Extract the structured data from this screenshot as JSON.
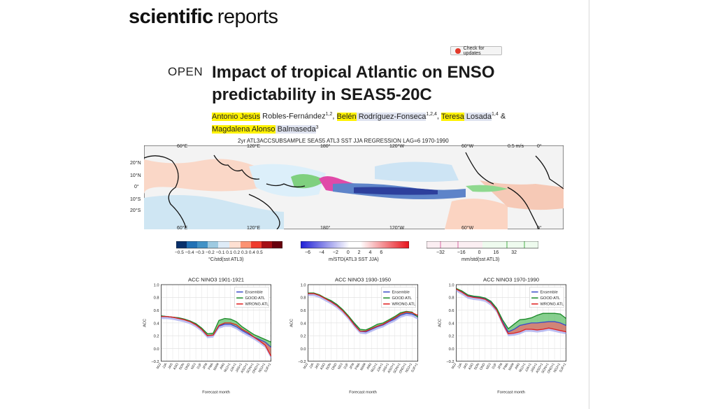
{
  "journal": {
    "bold": "scientific",
    "light": "reports"
  },
  "check_updates": "Check for updates",
  "open_label": "OPEN",
  "title": "Impact of tropical Atlantic on ENSO predictability in SEAS5-20C",
  "authors": {
    "a1_first": "Antonio Jesús",
    "a1_rest": " Robles-Fernández",
    "a1_sup": "1,2",
    "sep1": ", ",
    "a2_first": "Belén",
    "a2_rest": " Rodríguez-Fonseca",
    "a2_sup": "1,2,4",
    "sep2": ", ",
    "a3_first": "Teresa",
    "a3_rest": " Losada",
    "a3_sup": "1,4",
    "sep3": " & ",
    "a4_first": "Magdalena Alonso",
    "a4_rest": " Balmaseda",
    "a4_sup": "3"
  },
  "map": {
    "title": "2yr ATL3ACCSUBSAMPLE SEAS5 ATL3 SST JJA REGRESSION LAG=6 1970-1990",
    "lon_labels": [
      "60°E",
      "120°E",
      "180°",
      "120°W",
      "60°W",
      "0°"
    ],
    "lat_labels": [
      "20°N",
      "10°N",
      "0°",
      "10°S",
      "20°S"
    ],
    "scale_label": "0.5 m/s",
    "colorbars": [
      {
        "ticks": [
          "−0.5",
          "−0.4",
          "−0.3",
          "−0.2",
          "−0.1",
          "0.1",
          "0.2",
          "0.3",
          "0.4",
          "0.5"
        ],
        "label": "°C/std(sst ATL3)"
      },
      {
        "ticks": [
          "−6",
          "−4",
          "−2",
          "0",
          "2",
          "4",
          "6"
        ],
        "label": "m/STD(ATL3 SST JJA)"
      },
      {
        "ticks": [
          "−32",
          "−16",
          "0",
          "16",
          "32"
        ],
        "label": "mm/std(sst ATL3)"
      }
    ]
  },
  "charts_common": {
    "xlabel": "Forecast month",
    "ylabel": "ACC",
    "yticks": [
      "1.0",
      "0.8",
      "0.6",
      "0.4",
      "0.2",
      "0.0",
      "−0.2"
    ],
    "xticks": [
      "MJJ",
      "JJA",
      "JAS",
      "ASO",
      "SON",
      "OND",
      "NDJ",
      "DJF",
      "JFM",
      "FMA",
      "MAM",
      "AMJ",
      "MJJ+1",
      "JJA+1",
      "JAS+1",
      "ASO+1",
      "SON+1",
      "OND+1",
      "NDJ+1",
      "DJF+1"
    ],
    "legend": [
      "Ensemble",
      "GOOD ATL",
      "WRONG ATL"
    ],
    "colors": {
      "ensemble": "#3b4cc8",
      "good": "#1d8a2a",
      "wrong": "#e02020",
      "band_ens": "#a6a8ee",
      "band_good": "#5fbf6a",
      "band_wrong": "#f07070"
    }
  },
  "chart_data": [
    {
      "type": "line",
      "title": "ACC NINO3 1901-1921",
      "xlabel": "Forecast month",
      "ylabel": "ACC",
      "ylim": [
        -0.2,
        1.0
      ],
      "x": [
        "MJJ",
        "JJA",
        "JAS",
        "ASO",
        "SON",
        "OND",
        "NDJ",
        "DJF",
        "JFM",
        "FMA",
        "MAM",
        "AMJ",
        "MJJ+1",
        "JJA+1",
        "JAS+1",
        "ASO+1",
        "SON+1",
        "OND+1",
        "NDJ+1",
        "DJF+1"
      ],
      "series": [
        {
          "name": "Ensemble",
          "values": [
            0.51,
            0.5,
            0.49,
            0.48,
            0.46,
            0.43,
            0.38,
            0.3,
            0.2,
            0.21,
            0.35,
            0.38,
            0.38,
            0.34,
            0.28,
            0.23,
            0.18,
            0.14,
            0.1,
            0.02
          ]
        },
        {
          "name": "GOOD ATL",
          "values": [
            0.51,
            0.5,
            0.49,
            0.48,
            0.46,
            0.43,
            0.39,
            0.32,
            0.23,
            0.24,
            0.44,
            0.47,
            0.46,
            0.42,
            0.34,
            0.28,
            0.22,
            0.18,
            0.14,
            0.1
          ]
        },
        {
          "name": "WRONG ATL",
          "values": [
            0.5,
            0.5,
            0.49,
            0.47,
            0.45,
            0.42,
            0.37,
            0.3,
            0.2,
            0.21,
            0.36,
            0.4,
            0.4,
            0.37,
            0.3,
            0.25,
            0.18,
            0.12,
            0.05,
            -0.12
          ]
        }
      ],
      "legend": "top-right",
      "grid": true
    },
    {
      "type": "line",
      "title": "ACC NINO3 1930-1950",
      "xlabel": "Forecast month",
      "ylabel": "ACC",
      "ylim": [
        -0.2,
        1.0
      ],
      "x": [
        "MJJ",
        "JJA",
        "JAS",
        "ASO",
        "SON",
        "OND",
        "NDJ",
        "DJF",
        "JFM",
        "FMA",
        "MAM",
        "AMJ",
        "MJJ+1",
        "JJA+1",
        "JAS+1",
        "ASO+1",
        "SON+1",
        "OND+1",
        "NDJ+1",
        "DJF+1"
      ],
      "series": [
        {
          "name": "Ensemble",
          "values": [
            0.86,
            0.86,
            0.83,
            0.78,
            0.74,
            0.68,
            0.6,
            0.5,
            0.38,
            0.27,
            0.26,
            0.3,
            0.34,
            0.37,
            0.42,
            0.46,
            0.52,
            0.55,
            0.54,
            0.5
          ]
        },
        {
          "name": "GOOD ATL",
          "values": [
            0.87,
            0.87,
            0.84,
            0.79,
            0.75,
            0.69,
            0.61,
            0.51,
            0.4,
            0.3,
            0.29,
            0.33,
            0.38,
            0.4,
            0.45,
            0.5,
            0.56,
            0.58,
            0.57,
            0.49
          ]
        },
        {
          "name": "WRONG ATL",
          "values": [
            0.86,
            0.86,
            0.83,
            0.78,
            0.73,
            0.67,
            0.59,
            0.49,
            0.37,
            0.27,
            0.27,
            0.31,
            0.35,
            0.38,
            0.43,
            0.48,
            0.54,
            0.57,
            0.56,
            0.52
          ]
        }
      ],
      "legend": "top-right",
      "grid": true
    },
    {
      "type": "line",
      "title": "ACC NINO3 1970-1990",
      "xlabel": "Forecast month",
      "ylabel": "ACC",
      "ylim": [
        -0.2,
        1.0
      ],
      "x": [
        "MJJ",
        "JJA",
        "JAS",
        "ASO",
        "SON",
        "OND",
        "NDJ",
        "DJF",
        "JFM",
        "FMA",
        "MAM",
        "AMJ",
        "MJJ+1",
        "JJA+1",
        "JAS+1",
        "ASO+1",
        "SON+1",
        "OND+1",
        "NDJ+1",
        "DJF+1"
      ],
      "series": [
        {
          "name": "Ensemble",
          "values": [
            0.94,
            0.89,
            0.83,
            0.81,
            0.8,
            0.78,
            0.73,
            0.62,
            0.42,
            0.26,
            0.3,
            0.36,
            0.38,
            0.4,
            0.4,
            0.41,
            0.42,
            0.42,
            0.4,
            0.36
          ]
        },
        {
          "name": "GOOD ATL",
          "values": [
            0.94,
            0.9,
            0.84,
            0.82,
            0.81,
            0.79,
            0.74,
            0.63,
            0.45,
            0.31,
            0.38,
            0.45,
            0.46,
            0.48,
            0.52,
            0.55,
            0.55,
            0.55,
            0.54,
            0.47
          ]
        },
        {
          "name": "WRONG ATL",
          "values": [
            0.93,
            0.88,
            0.82,
            0.8,
            0.79,
            0.77,
            0.71,
            0.6,
            0.4,
            0.23,
            0.24,
            0.26,
            0.3,
            0.3,
            0.29,
            0.3,
            0.32,
            0.3,
            0.28,
            0.26
          ]
        }
      ],
      "legend": "top-right",
      "grid": true
    }
  ]
}
